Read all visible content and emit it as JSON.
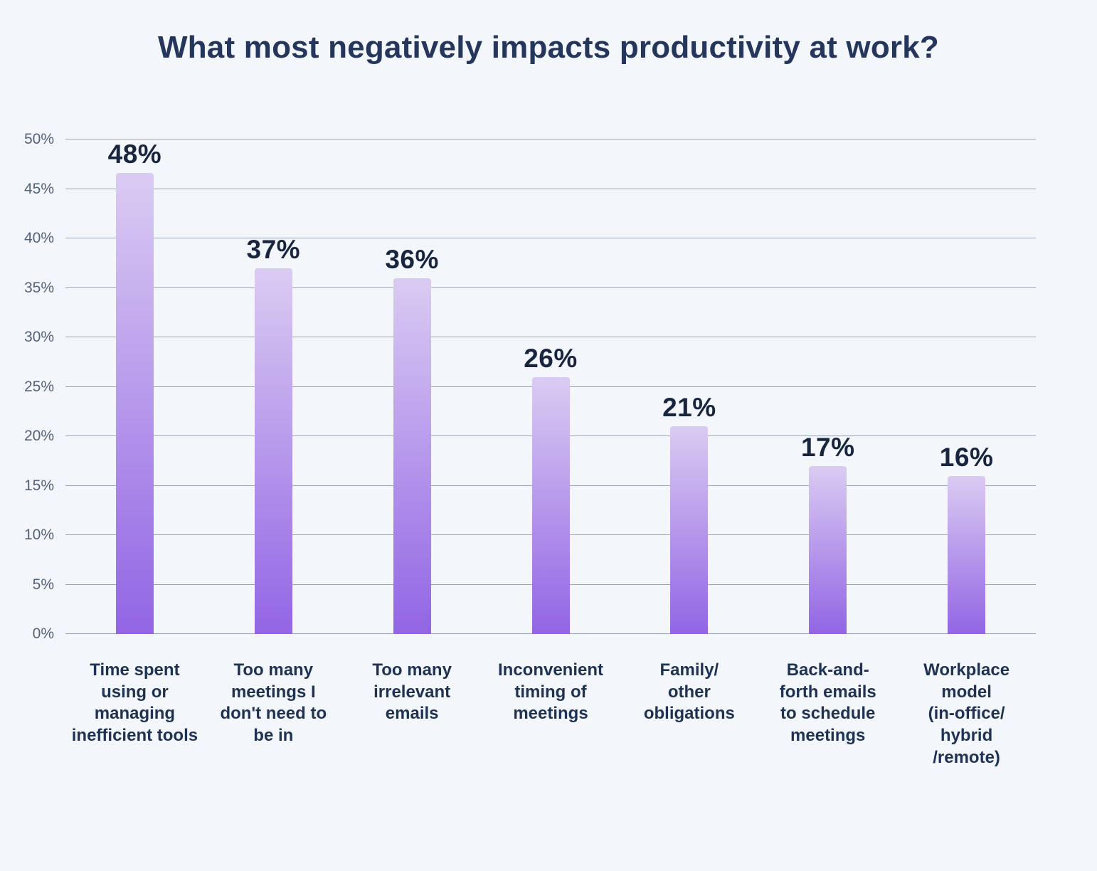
{
  "title": "What most negatively impacts productivity at work?",
  "chart_data": {
    "type": "bar",
    "title": "What most negatively impacts productivity at work?",
    "categories": [
      "Time spent\nusing or\nmanaging\ninefficient tools",
      "Too many\nmeetings I\ndon't need to\nbe in",
      "Too many\nirrelevant\nemails",
      "Inconvenient\ntiming of\nmeetings",
      "Family/\nother\nobligations",
      "Back-and-\nforth emails\nto schedule\nmeetings",
      "Workplace\nmodel\n(in-office/\nhybrid\n/remote)"
    ],
    "values": [
      48,
      37,
      36,
      26,
      21,
      17,
      16
    ],
    "value_labels": [
      "48%",
      "37%",
      "36%",
      "26%",
      "21%",
      "17%",
      "16%"
    ],
    "xlabel": "",
    "ylabel": "",
    "ylim": [
      0,
      50
    ],
    "yticks": [
      0,
      5,
      10,
      15,
      20,
      25,
      30,
      35,
      40,
      45,
      50
    ],
    "ytick_labels": [
      "0%",
      "5%",
      "10%",
      "15%",
      "20%",
      "25%",
      "30%",
      "35%",
      "40%",
      "45%",
      "50%"
    ],
    "grid": true,
    "legend": "none",
    "colors": {
      "background": "#f3f6fa",
      "title_text": "#24365c",
      "bar_gradient_top": "#dacbf2",
      "bar_gradient_bottom": "#9265e4",
      "value_label_text": "#17253f",
      "category_label_text": "#1e3254",
      "tick_label_text": "#51627a",
      "gridline": "#4d5d76"
    }
  }
}
